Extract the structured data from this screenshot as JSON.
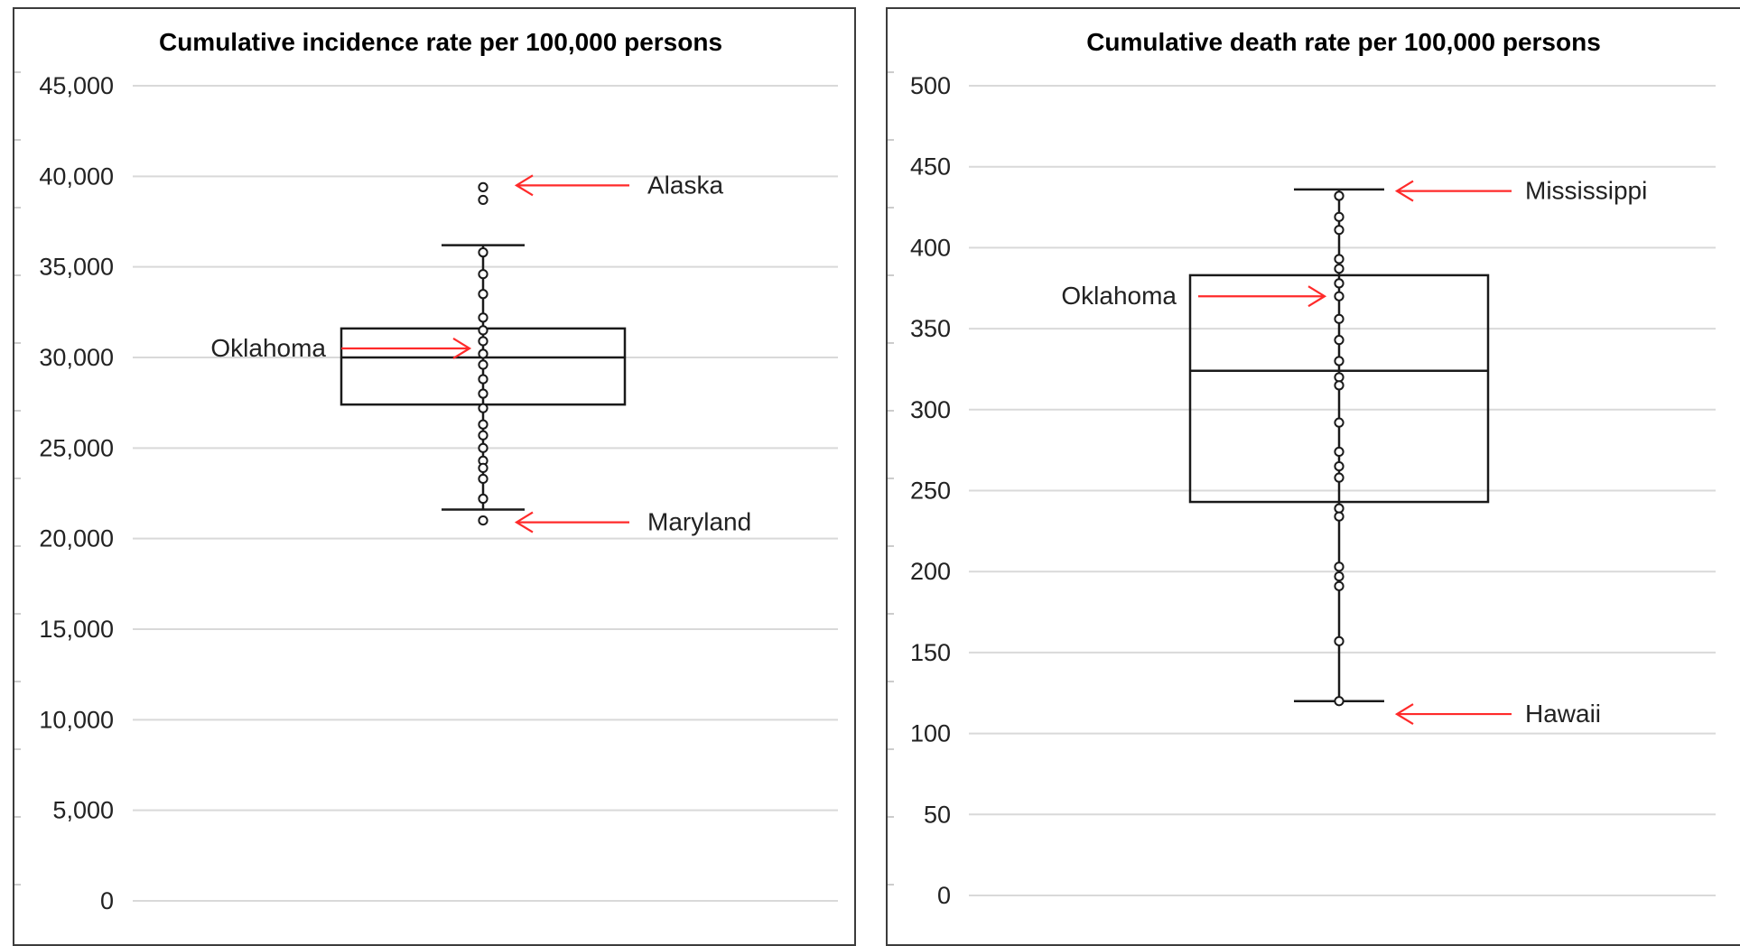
{
  "chart_data": [
    {
      "type": "boxplot",
      "title": "Cumulative incidence rate per 100,000 persons",
      "ylim": [
        0,
        45000
      ],
      "yticks": [
        {
          "value": 0,
          "label": "0"
        },
        {
          "value": 5000,
          "label": "5,000"
        },
        {
          "value": 10000,
          "label": "10,000"
        },
        {
          "value": 15000,
          "label": "15,000"
        },
        {
          "value": 20000,
          "label": "20,000"
        },
        {
          "value": 25000,
          "label": "25,000"
        },
        {
          "value": 30000,
          "label": "30,000"
        },
        {
          "value": 35000,
          "label": "35,000"
        },
        {
          "value": 40000,
          "label": "40,000"
        },
        {
          "value": 45000,
          "label": "45,000"
        }
      ],
      "grid": true,
      "box": {
        "whisker_low": 21600,
        "q1": 27400,
        "median": 30000,
        "q3": 31600,
        "whisker_high": 36200
      },
      "points": [
        39400,
        38700,
        35800,
        34600,
        33500,
        32200,
        31500,
        30900,
        30200,
        29600,
        28800,
        28000,
        27200,
        26300,
        25700,
        25000,
        24300,
        23900,
        23300,
        22200,
        21000
      ],
      "annotations": [
        {
          "text": "Alaska",
          "value": 39500,
          "side": "right"
        },
        {
          "text": "Oklahoma",
          "value": 30500,
          "side": "left"
        },
        {
          "text": "Maryland",
          "value": 20900,
          "side": "right"
        }
      ]
    },
    {
      "type": "boxplot",
      "title": "Cumulative death rate per 100,000 persons",
      "ylim": [
        0,
        500
      ],
      "yticks": [
        {
          "value": 0,
          "label": "0"
        },
        {
          "value": 50,
          "label": "50"
        },
        {
          "value": 100,
          "label": "100"
        },
        {
          "value": 150,
          "label": "150"
        },
        {
          "value": 200,
          "label": "200"
        },
        {
          "value": 250,
          "label": "250"
        },
        {
          "value": 300,
          "label": "300"
        },
        {
          "value": 350,
          "label": "350"
        },
        {
          "value": 400,
          "label": "400"
        },
        {
          "value": 450,
          "label": "450"
        },
        {
          "value": 500,
          "label": "500"
        }
      ],
      "grid": true,
      "box": {
        "whisker_low": 120,
        "q1": 243,
        "median": 324,
        "q3": 383,
        "whisker_high": 436
      },
      "points": [
        432,
        419,
        411,
        393,
        387,
        378,
        370,
        356,
        343,
        330,
        320,
        315,
        292,
        274,
        265,
        258,
        239,
        234,
        203,
        197,
        191,
        157,
        120
      ],
      "annotations": [
        {
          "text": "Mississippi",
          "value": 435,
          "side": "right"
        },
        {
          "text": "Oklahoma",
          "value": 370,
          "side": "left"
        },
        {
          "text": "Hawaii",
          "value": 112,
          "side": "right"
        }
      ]
    }
  ],
  "colors": {
    "annotation_arrow": "#ff2a2a",
    "gridline": "#d9d9d9",
    "box_stroke": "#1a1a1a",
    "frame": "#3c3c3c"
  }
}
